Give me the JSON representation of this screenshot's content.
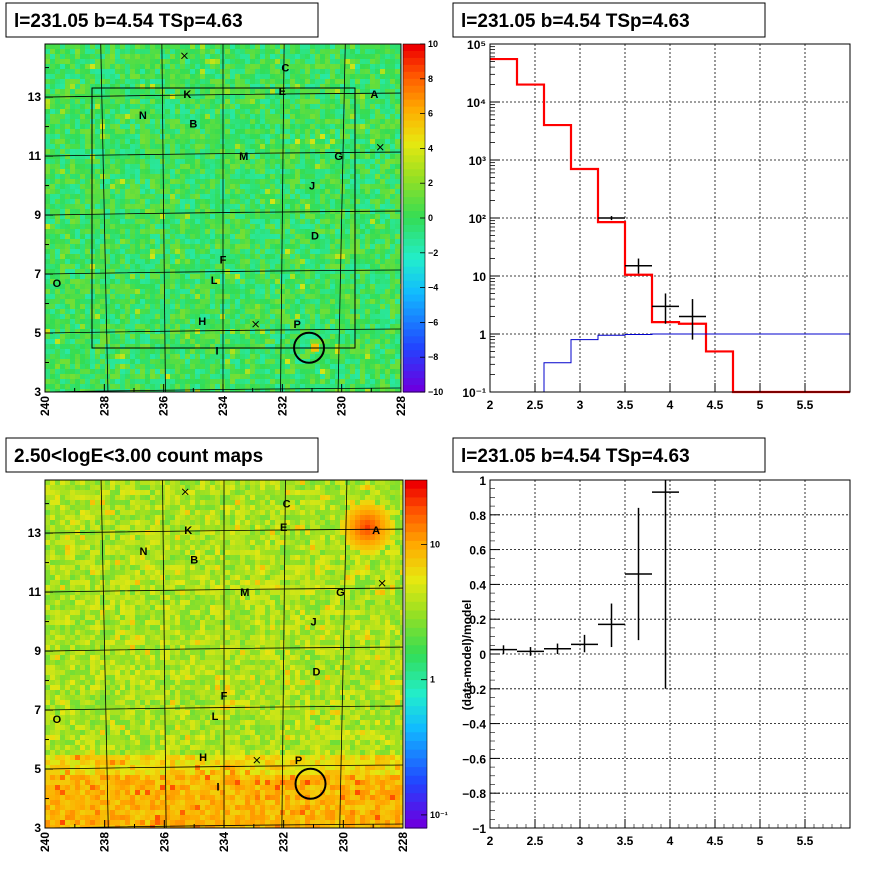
{
  "chart_data": [
    {
      "type": "heatmap",
      "title": "l=231.05 b=4.54 TSp=4.63",
      "xlim": [
        240,
        228
      ],
      "ylim": [
        3,
        14.8
      ],
      "x_ticks": [
        "240",
        "238",
        "236",
        "234",
        "232",
        "230",
        "228"
      ],
      "y_ticks": [
        "3",
        "5",
        "7",
        "9",
        "11",
        "13"
      ],
      "colorbar_ticks": [
        "10",
        "8",
        "6",
        "4",
        "2",
        "0",
        "−2",
        "−4",
        "−6",
        "−8",
        "−10"
      ],
      "zlim": [
        -10,
        10
      ],
      "sources": [
        {
          "label": "A",
          "x": 228.9,
          "y": 13.1
        },
        {
          "label": "B",
          "x": 235.0,
          "y": 12.1
        },
        {
          "label": "C",
          "x": 231.9,
          "y": 14.0
        },
        {
          "label": "D",
          "x": 230.9,
          "y": 8.3
        },
        {
          "label": "E",
          "x": 232.0,
          "y": 13.2
        },
        {
          "label": "F",
          "x": 234.0,
          "y": 7.5
        },
        {
          "label": "G",
          "x": 230.1,
          "y": 11.0
        },
        {
          "label": "H",
          "x": 234.7,
          "y": 5.4
        },
        {
          "label": "I",
          "x": 234.2,
          "y": 4.4
        },
        {
          "label": "J",
          "x": 231.0,
          "y": 10.0
        },
        {
          "label": "K",
          "x": 235.2,
          "y": 13.1
        },
        {
          "label": "L",
          "x": 234.3,
          "y": 6.8
        },
        {
          "label": "M",
          "x": 233.3,
          "y": 11.0
        },
        {
          "label": "N",
          "x": 236.7,
          "y": 12.4
        },
        {
          "label": "O",
          "x": 239.6,
          "y": 6.7
        },
        {
          "label": "P",
          "x": 231.5,
          "y": 5.3
        }
      ],
      "crosses": [
        {
          "x": 235.3,
          "y": 14.4
        },
        {
          "x": 232.9,
          "y": 5.3
        },
        {
          "x": 228.7,
          "y": 11.3
        }
      ],
      "circle": {
        "x": 231.1,
        "y": 4.5
      }
    },
    {
      "type": "line",
      "title": "l=231.05 b=4.54 TSp=4.63",
      "xlim": [
        2,
        6
      ],
      "ylim": [
        0.1,
        100000
      ],
      "yscale": "log",
      "x_ticks": [
        "2",
        "2.5",
        "3",
        "3.5",
        "4",
        "4.5",
        "5",
        "5.5"
      ],
      "y_ticks": [
        "10⁻¹",
        "1",
        "10",
        "10²",
        "10³",
        "10⁴",
        "10⁵"
      ],
      "grid": true,
      "series": [
        {
          "type": "step",
          "color": "#ff0000",
          "x_edges": [
            2.0,
            2.3,
            2.6,
            2.9,
            3.2,
            3.5,
            3.8,
            4.1,
            4.4,
            4.7,
            5.0,
            5.3,
            5.6,
            6.0
          ],
          "values": [
            55000,
            20000,
            4000,
            700,
            85,
            10.5,
            1.6,
            1.5,
            0.5,
            0.1,
            0.1,
            0.1,
            0.1
          ]
        },
        {
          "type": "step",
          "color": "#0000cc",
          "x_edges": [
            2.6,
            2.9,
            3.2,
            3.5,
            3.8,
            6.0
          ],
          "values": [
            0.32,
            0.8,
            0.95,
            0.98,
            1.0
          ]
        },
        {
          "type": "errorbar",
          "color": "#000000",
          "points": [
            {
              "x": 3.35,
              "xerr": 0.15,
              "y": 100,
              "ylo": 92,
              "yhi": 108
            },
            {
              "x": 3.65,
              "xerr": 0.15,
              "y": 15,
              "ylo": 11,
              "yhi": 20
            },
            {
              "x": 3.95,
              "xerr": 0.15,
              "y": 3,
              "ylo": 1.5,
              "yhi": 5
            },
            {
              "x": 4.25,
              "xerr": 0.15,
              "y": 2,
              "ylo": 0.8,
              "yhi": 4
            }
          ]
        }
      ]
    },
    {
      "type": "heatmap",
      "title": "2.50<logE<3.00 count maps",
      "xlim": [
        240,
        228
      ],
      "ylim": [
        3,
        14.8
      ],
      "x_ticks": [
        "240",
        "238",
        "236",
        "234",
        "232",
        "230",
        "228"
      ],
      "y_ticks": [
        "3",
        "5",
        "7",
        "9",
        "11",
        "13"
      ],
      "colorbar_ticks": [
        "10",
        "1",
        "10⁻¹"
      ],
      "zscale": "log",
      "zlim": [
        0.08,
        30
      ],
      "bright_source": {
        "label": "A",
        "x": 229.2,
        "y": 13.2
      },
      "sources": [
        {
          "label": "A",
          "x": 228.9,
          "y": 13.1
        },
        {
          "label": "B",
          "x": 235.0,
          "y": 12.1
        },
        {
          "label": "C",
          "x": 231.9,
          "y": 14.0
        },
        {
          "label": "D",
          "x": 230.9,
          "y": 8.3
        },
        {
          "label": "E",
          "x": 232.0,
          "y": 13.2
        },
        {
          "label": "F",
          "x": 234.0,
          "y": 7.5
        },
        {
          "label": "G",
          "x": 230.1,
          "y": 11.0
        },
        {
          "label": "H",
          "x": 234.7,
          "y": 5.4
        },
        {
          "label": "I",
          "x": 234.2,
          "y": 4.4
        },
        {
          "label": "J",
          "x": 231.0,
          "y": 10.0
        },
        {
          "label": "K",
          "x": 235.2,
          "y": 13.1
        },
        {
          "label": "L",
          "x": 234.3,
          "y": 6.8
        },
        {
          "label": "M",
          "x": 233.3,
          "y": 11.0
        },
        {
          "label": "N",
          "x": 236.7,
          "y": 12.4
        },
        {
          "label": "O",
          "x": 239.6,
          "y": 6.7
        },
        {
          "label": "P",
          "x": 231.5,
          "y": 5.3
        }
      ],
      "crosses": [
        {
          "x": 235.3,
          "y": 14.4
        },
        {
          "x": 232.9,
          "y": 5.3
        },
        {
          "x": 228.7,
          "y": 11.3
        }
      ],
      "circle": {
        "x": 231.1,
        "y": 4.5
      }
    },
    {
      "type": "scatter",
      "title": "l=231.05 b=4.54 TSp=4.63",
      "ylabel": "(data-model)/model",
      "xlim": [
        2,
        6
      ],
      "ylim": [
        -1,
        1
      ],
      "x_ticks": [
        "2",
        "2.5",
        "3",
        "3.5",
        "4",
        "4.5",
        "5",
        "5.5"
      ],
      "y_ticks": [
        "1",
        "0.8",
        "0.6",
        "0.4",
        "0.2",
        "0",
        "−0.2",
        "−0.4",
        "−0.6",
        "−0.8",
        "−1"
      ],
      "grid": true,
      "points": [
        {
          "x": 2.15,
          "xerr": 0.15,
          "y": 0.025,
          "ylo": 0.0,
          "yhi": 0.05
        },
        {
          "x": 2.45,
          "xerr": 0.15,
          "y": 0.015,
          "ylo": -0.01,
          "yhi": 0.04
        },
        {
          "x": 2.75,
          "xerr": 0.15,
          "y": 0.03,
          "ylo": 0.0,
          "yhi": 0.06
        },
        {
          "x": 3.05,
          "xerr": 0.15,
          "y": 0.055,
          "ylo": 0.01,
          "yhi": 0.11
        },
        {
          "x": 3.35,
          "xerr": 0.15,
          "y": 0.17,
          "ylo": 0.04,
          "yhi": 0.29
        },
        {
          "x": 3.65,
          "xerr": 0.15,
          "y": 0.46,
          "ylo": 0.08,
          "yhi": 0.84
        },
        {
          "x": 3.95,
          "xerr": 0.15,
          "y": 0.93,
          "ylo": -0.2,
          "yhi": 1.0
        }
      ]
    }
  ]
}
